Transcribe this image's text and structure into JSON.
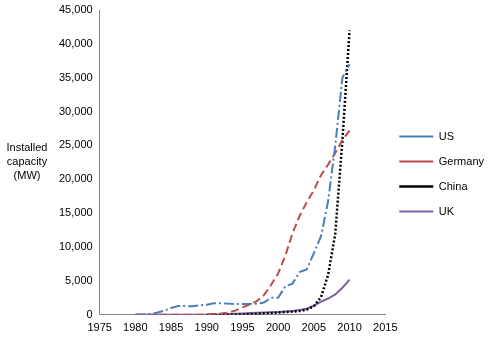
{
  "chart_data": {
    "type": "line",
    "y_label": "Installed capacity (MW)",
    "x": [
      1980,
      1981,
      1982,
      1983,
      1984,
      1985,
      1986,
      1987,
      1988,
      1989,
      1990,
      1991,
      1992,
      1993,
      1994,
      1995,
      1996,
      1997,
      1998,
      1999,
      2000,
      2001,
      2002,
      2003,
      2004,
      2005,
      2006,
      2007,
      2008,
      2009,
      2010
    ],
    "series": [
      {
        "name": "US",
        "color": "#4a7ebb",
        "line_style": "dashdot",
        "values": [
          10,
          50,
          100,
          300,
          600,
          1000,
          1300,
          1300,
          1250,
          1400,
          1500,
          1700,
          1700,
          1650,
          1600,
          1600,
          1600,
          1650,
          1800,
          2500,
          2500,
          4200,
          4600,
          6300,
          6700,
          9100,
          11600,
          16800,
          25000,
          35000,
          37000
        ]
      },
      {
        "name": "Germany",
        "color": "#be4b48",
        "line_style": "dashed",
        "values": [
          0,
          0,
          0,
          0,
          0,
          0,
          0,
          0,
          10,
          20,
          60,
          110,
          180,
          330,
          620,
          1100,
          1500,
          2000,
          2900,
          4400,
          6100,
          8700,
          12000,
          14600,
          16600,
          18400,
          20600,
          22200,
          23900,
          25800,
          27200
        ]
      },
      {
        "name": "China",
        "color": "#000000",
        "line_style": "dotted",
        "values": [
          null,
          null,
          null,
          null,
          null,
          null,
          null,
          null,
          null,
          null,
          0,
          1,
          10,
          15,
          30,
          40,
          80,
          150,
          220,
          270,
          350,
          400,
          470,
          570,
          760,
          1260,
          2600,
          5900,
          12000,
          25800,
          42000
        ]
      },
      {
        "name": "UK",
        "color": "#7d60a0",
        "line_style": "solid",
        "values": [
          0,
          0,
          0,
          0,
          0,
          0,
          0,
          0,
          0,
          0,
          10,
          20,
          50,
          100,
          150,
          200,
          250,
          300,
          330,
          360,
          400,
          470,
          550,
          700,
          900,
          1350,
          1960,
          2400,
          3000,
          4000,
          5200
        ]
      }
    ],
    "xlim": [
      1975,
      2015
    ],
    "xticks": [
      1975,
      1980,
      1985,
      1990,
      1995,
      2000,
      2005,
      2010,
      2015
    ],
    "ylim": [
      0,
      45000
    ],
    "yticks": [
      0,
      {
        "value": 5000,
        "label": "5,000"
      },
      {
        "value": 10000,
        "label": "10,000"
      },
      {
        "value": 15000,
        "label": "15,000"
      },
      {
        "value": 20000,
        "label": "20,000"
      },
      {
        "value": 25000,
        "label": "25,000"
      },
      {
        "value": 30000,
        "label": "30,000"
      },
      {
        "value": 35000,
        "label": "35,000"
      },
      {
        "value": 40000,
        "label": "40,000"
      },
      {
        "value": 45000,
        "label": "45,000"
      }
    ],
    "grid": false,
    "legend": "right"
  }
}
